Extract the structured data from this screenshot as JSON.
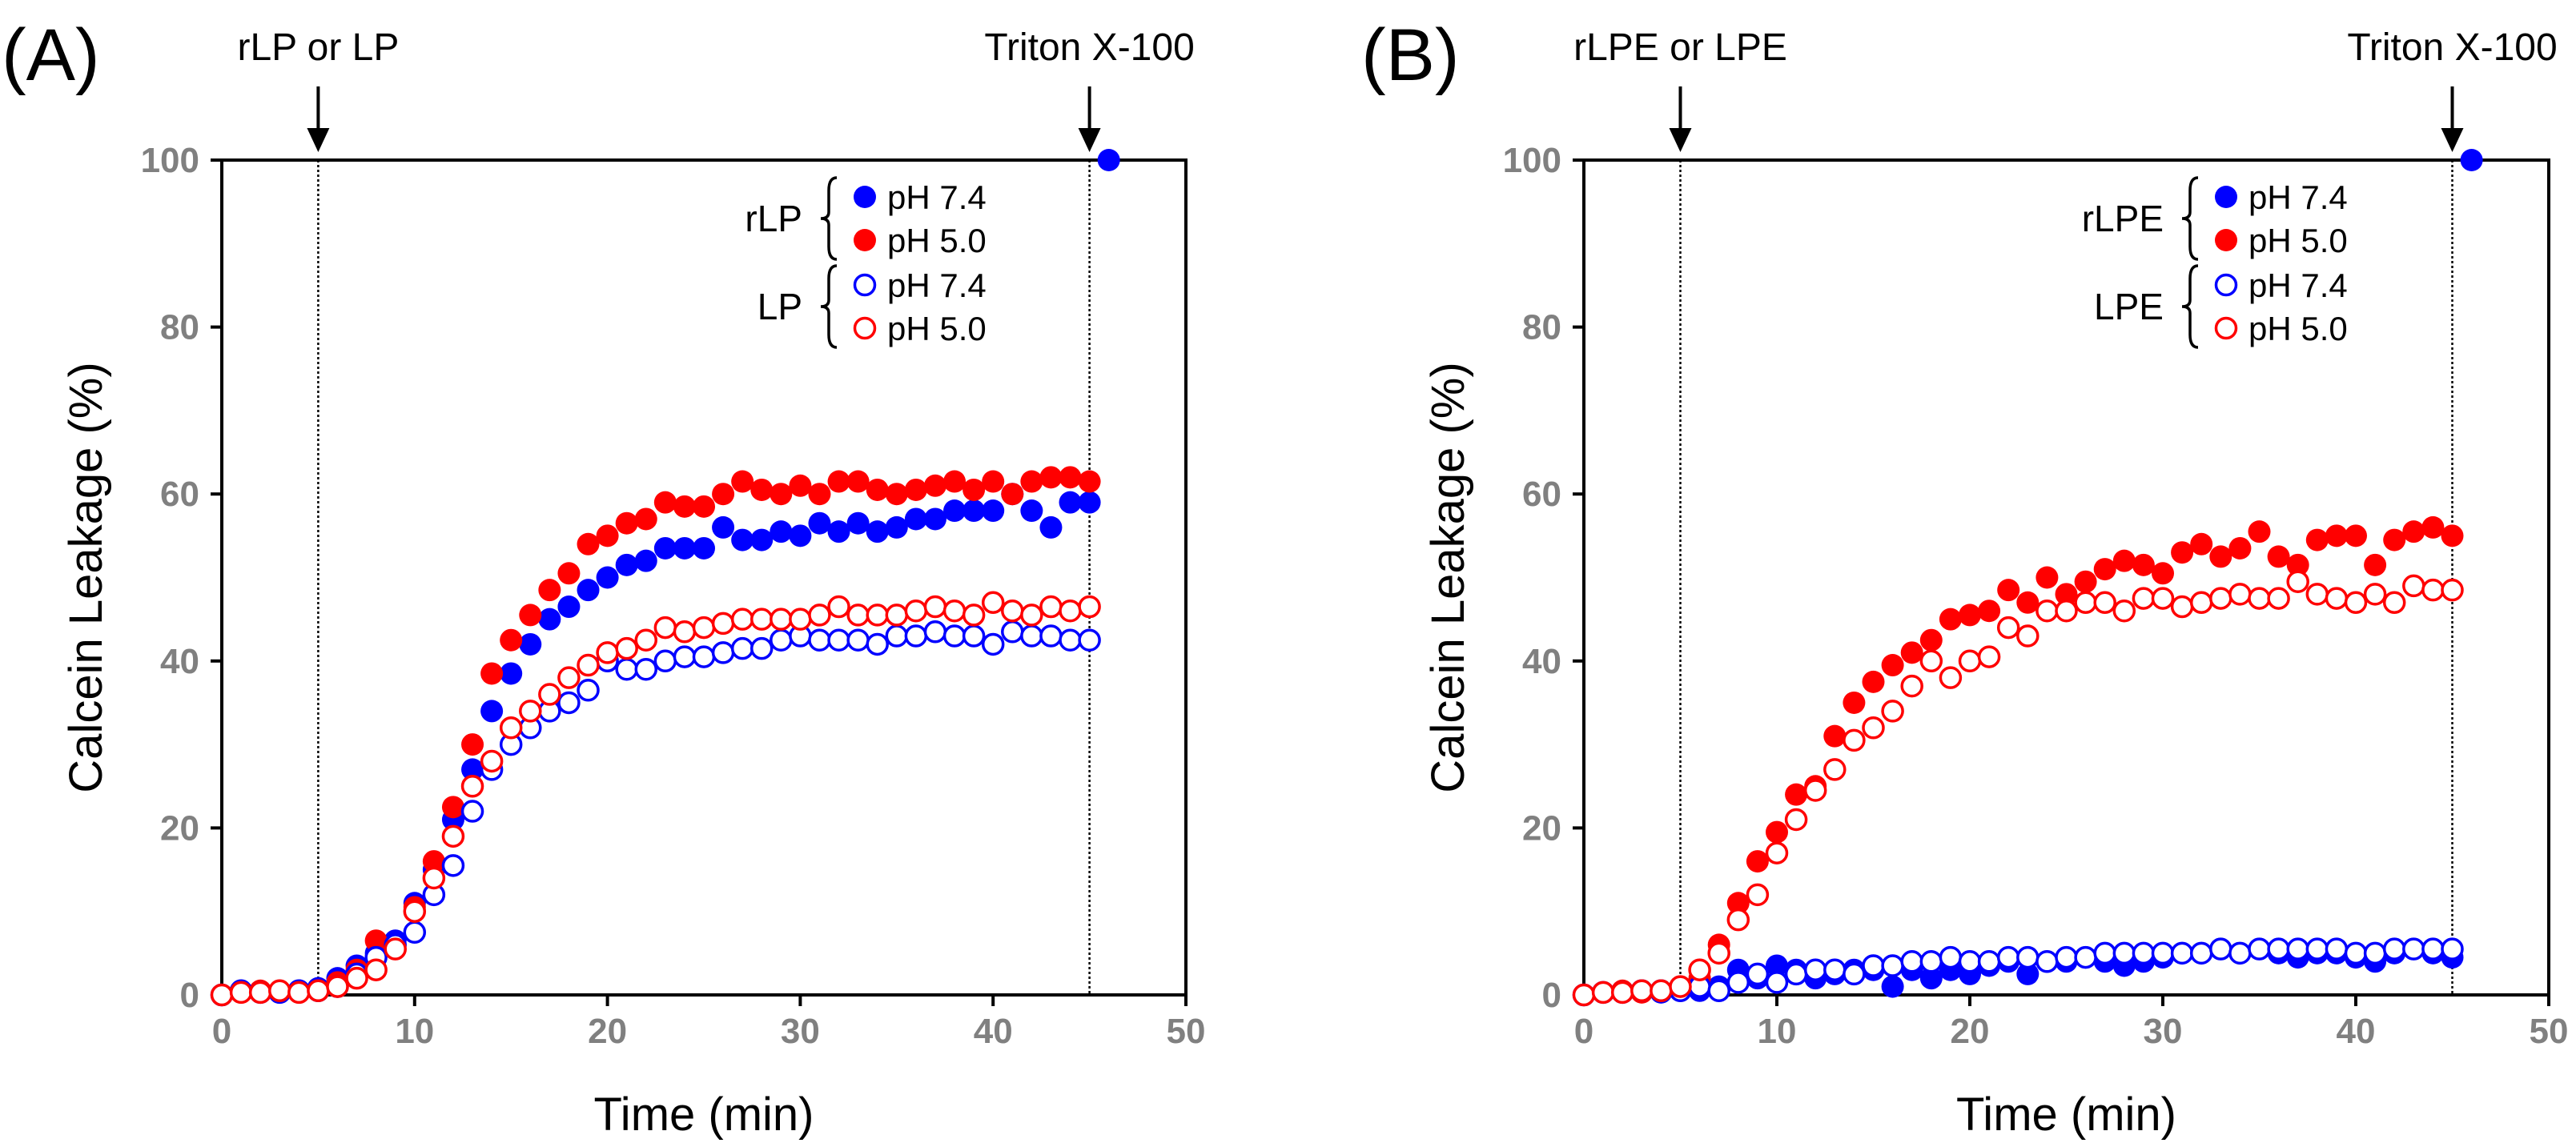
{
  "figure": {
    "colors": {
      "ph74": "#0000ff",
      "ph50": "#ff0000",
      "axis": "#000000",
      "tick": "#808080"
    }
  },
  "chart_data": [
    {
      "type": "scatter",
      "panel_label": "(A)",
      "xlabel": "Time (min)",
      "ylabel": "Calcein Leakage (%)",
      "xlim": [
        0,
        50
      ],
      "ylim": [
        0,
        100
      ],
      "xticks": [
        0,
        10,
        20,
        30,
        40,
        50
      ],
      "yticks": [
        0,
        20,
        40,
        60,
        80,
        100
      ],
      "annotations": [
        {
          "text": "rLP or LP",
          "x": 5
        },
        {
          "text": "Triton X-100",
          "x": 45
        }
      ],
      "legend": {
        "placement": "top-right",
        "groups": [
          {
            "label": "rLP",
            "entries": [
              {
                "label": "pH 7.4",
                "series": "rLP pH 7.4",
                "color": "#0000ff",
                "filled": true
              },
              {
                "label": "pH 5.0",
                "series": "rLP pH 5.0",
                "color": "#ff0000",
                "filled": true
              }
            ]
          },
          {
            "label": "LP",
            "entries": [
              {
                "label": "pH 7.4",
                "series": "LP pH 7.4",
                "color": "#0000ff",
                "filled": false
              },
              {
                "label": "pH 5.0",
                "series": "LP pH 5.0",
                "color": "#ff0000",
                "filled": false
              }
            ]
          }
        ]
      },
      "series": [
        {
          "name": "rLP pH 7.4",
          "color": "#0000ff",
          "filled": true,
          "x": [
            0,
            1,
            2,
            3,
            4,
            5,
            6,
            7,
            8,
            9,
            10,
            11,
            12,
            13,
            14,
            15,
            16,
            17,
            18,
            19,
            20,
            21,
            22,
            23,
            24,
            25,
            26,
            27,
            28,
            29,
            30,
            31,
            32,
            33,
            34,
            35,
            36,
            37,
            38,
            39,
            40,
            41,
            42,
            43,
            44,
            45
          ],
          "y": [
            0,
            0.5,
            0.3,
            0.5,
            0.3,
            0.8,
            2,
            3.5,
            5,
            6.5,
            11,
            15,
            21,
            27,
            34,
            38.5,
            42,
            45,
            46.5,
            48.5,
            50,
            51.5,
            52,
            53.5,
            53.5,
            53.5,
            56,
            54.5,
            54.5,
            55.5,
            55,
            56.5,
            55.5,
            56.5,
            55.5,
            56,
            57,
            57,
            58,
            58,
            58,
            60,
            58,
            56,
            59,
            59
          ]
        },
        {
          "name": "rLP pH 5.0",
          "color": "#ff0000",
          "filled": true,
          "x": [
            0,
            1,
            2,
            3,
            4,
            5,
            6,
            7,
            8,
            9,
            10,
            11,
            12,
            13,
            14,
            15,
            16,
            17,
            18,
            19,
            20,
            21,
            22,
            23,
            24,
            25,
            26,
            27,
            28,
            29,
            30,
            31,
            32,
            33,
            34,
            35,
            36,
            37,
            38,
            39,
            40,
            41,
            42,
            43,
            44,
            45
          ],
          "y": [
            0,
            0.3,
            0.5,
            0.3,
            0.5,
            0.5,
            1.5,
            3,
            6.5,
            5.5,
            10.5,
            16,
            22.5,
            30,
            38.5,
            42.5,
            45.5,
            48.5,
            50.5,
            54,
            55,
            56.5,
            57,
            59,
            58.5,
            58.5,
            60,
            61.5,
            60.5,
            60,
            61,
            60,
            61.5,
            61.5,
            60.5,
            60,
            60.5,
            61,
            61.5,
            60.5,
            61.5,
            60,
            61.5,
            62,
            62,
            61.5
          ]
        },
        {
          "name": "LP pH 7.4",
          "color": "#0000ff",
          "filled": false,
          "x": [
            0,
            1,
            2,
            3,
            4,
            5,
            6,
            7,
            8,
            9,
            10,
            11,
            12,
            13,
            14,
            15,
            16,
            17,
            18,
            19,
            20,
            21,
            22,
            23,
            24,
            25,
            26,
            27,
            28,
            29,
            30,
            31,
            32,
            33,
            34,
            35,
            36,
            37,
            38,
            39,
            40,
            41,
            42,
            43,
            44,
            45
          ],
          "y": [
            0,
            0.5,
            0.3,
            0.3,
            0.5,
            0.5,
            1,
            2.5,
            4.5,
            6,
            7.5,
            12,
            15.5,
            22,
            27,
            30,
            32,
            34,
            35,
            36.5,
            40,
            39,
            39,
            40,
            40.5,
            40.5,
            41,
            41.5,
            41.5,
            42.5,
            43,
            42.5,
            42.5,
            42.5,
            42,
            43,
            43,
            43.5,
            43,
            43,
            42,
            43.5,
            43,
            43,
            42.5,
            42.5
          ]
        },
        {
          "name": "LP pH 5.0",
          "color": "#ff0000",
          "filled": false,
          "x": [
            0,
            1,
            2,
            3,
            4,
            5,
            6,
            7,
            8,
            9,
            10,
            11,
            12,
            13,
            14,
            15,
            16,
            17,
            18,
            19,
            20,
            21,
            22,
            23,
            24,
            25,
            26,
            27,
            28,
            29,
            30,
            31,
            32,
            33,
            34,
            35,
            36,
            37,
            38,
            39,
            40,
            41,
            42,
            43,
            44,
            45
          ],
          "y": [
            0,
            0.3,
            0.3,
            0.5,
            0.3,
            0.5,
            1,
            2,
            3,
            5.5,
            10,
            14,
            19,
            25,
            28,
            32,
            34,
            36,
            38,
            39.5,
            41,
            41.5,
            42.5,
            44,
            43.5,
            44,
            44.5,
            45,
            45,
            45,
            45,
            45.5,
            46.5,
            45.5,
            45.5,
            45.5,
            46,
            46.5,
            46,
            45.5,
            47,
            46,
            45.5,
            46.5,
            46,
            46.5
          ]
        },
        {
          "name": "Triton X-100",
          "color": "#0000ff",
          "filled": true,
          "marker_only": true,
          "x": [
            46
          ],
          "y": [
            100
          ]
        }
      ]
    },
    {
      "type": "scatter",
      "panel_label": "(B)",
      "xlabel": "Time (min)",
      "ylabel": "Calcein Leakage (%)",
      "xlim": [
        0,
        50
      ],
      "ylim": [
        0,
        100
      ],
      "xticks": [
        0,
        10,
        20,
        30,
        40,
        50
      ],
      "yticks": [
        0,
        20,
        40,
        60,
        80,
        100
      ],
      "annotations": [
        {
          "text": "rLPE or LPE",
          "x": 5
        },
        {
          "text": "Triton X-100",
          "x": 45
        }
      ],
      "legend": {
        "placement": "top-right",
        "groups": [
          {
            "label": "rLPE",
            "entries": [
              {
                "label": "pH 7.4",
                "series": "rLPE pH 7.4",
                "color": "#0000ff",
                "filled": true
              },
              {
                "label": "pH 5.0",
                "series": "rLPE pH 5.0",
                "color": "#ff0000",
                "filled": true
              }
            ]
          },
          {
            "label": "LPE",
            "entries": [
              {
                "label": "pH 7.4",
                "series": "LPE pH 7.4",
                "color": "#0000ff",
                "filled": false
              },
              {
                "label": "pH 5.0",
                "series": "LPE pH 5.0",
                "color": "#ff0000",
                "filled": false
              }
            ]
          }
        ]
      },
      "series": [
        {
          "name": "rLPE pH 7.4",
          "color": "#0000ff",
          "filled": true,
          "x": [
            0,
            1,
            2,
            3,
            4,
            5,
            6,
            7,
            8,
            9,
            10,
            11,
            12,
            13,
            14,
            15,
            16,
            17,
            18,
            19,
            20,
            21,
            22,
            23,
            24,
            25,
            26,
            27,
            28,
            29,
            30,
            31,
            32,
            33,
            34,
            35,
            36,
            37,
            38,
            39,
            40,
            41,
            42,
            43,
            44,
            45
          ],
          "y": [
            0,
            0.3,
            0.3,
            0.5,
            0.3,
            0.5,
            0.5,
            1,
            3,
            2,
            3.5,
            3,
            2,
            2.5,
            3,
            3,
            1,
            3,
            2,
            3,
            2.5,
            3.5,
            4,
            2.5,
            4,
            4,
            4.5,
            4,
            3.5,
            4,
            4.5,
            5,
            5,
            5.5,
            5,
            5.5,
            5,
            4.5,
            5,
            5,
            4.5,
            4,
            5,
            5.5,
            5,
            4.5
          ]
        },
        {
          "name": "rLPE pH 5.0",
          "color": "#ff0000",
          "filled": true,
          "x": [
            0,
            1,
            2,
            3,
            4,
            5,
            6,
            7,
            8,
            9,
            10,
            11,
            12,
            13,
            14,
            15,
            16,
            17,
            18,
            19,
            20,
            21,
            22,
            23,
            24,
            25,
            26,
            27,
            28,
            29,
            30,
            31,
            32,
            33,
            34,
            35,
            36,
            37,
            38,
            39,
            40,
            41,
            42,
            43,
            44,
            45
          ],
          "y": [
            0,
            0.3,
            0.5,
            0.3,
            0.5,
            0.5,
            2,
            6,
            11,
            16,
            19.5,
            24,
            25,
            31,
            35,
            37.5,
            39.5,
            41,
            42.5,
            45,
            45.5,
            46,
            48.5,
            47,
            50,
            48,
            49.5,
            51,
            52,
            51.5,
            50.5,
            53,
            54,
            52.5,
            53.5,
            55.5,
            52.5,
            51.5,
            54.5,
            55,
            55,
            51.5,
            54.5,
            55.5,
            56,
            55
          ]
        },
        {
          "name": "LPE pH 7.4",
          "color": "#0000ff",
          "filled": false,
          "x": [
            0,
            1,
            2,
            3,
            4,
            5,
            6,
            7,
            8,
            9,
            10,
            11,
            12,
            13,
            14,
            15,
            16,
            17,
            18,
            19,
            20,
            21,
            22,
            23,
            24,
            25,
            26,
            27,
            28,
            29,
            30,
            31,
            32,
            33,
            34,
            35,
            36,
            37,
            38,
            39,
            40,
            41,
            42,
            43,
            44,
            45
          ],
          "y": [
            0,
            0.3,
            0.3,
            0.5,
            0.5,
            0.5,
            1,
            0.5,
            1.5,
            2.5,
            1.5,
            2.5,
            3,
            3,
            2.5,
            3.5,
            3.5,
            4,
            4,
            4.5,
            4,
            4,
            4.5,
            4.5,
            4,
            4.5,
            4.5,
            5,
            5,
            5,
            5,
            5,
            5,
            5.5,
            5,
            5.5,
            5.5,
            5.5,
            5.5,
            5.5,
            5,
            5,
            5.5,
            5.5,
            5.5,
            5.5
          ]
        },
        {
          "name": "LPE pH 5.0",
          "color": "#ff0000",
          "filled": false,
          "x": [
            0,
            1,
            2,
            3,
            4,
            5,
            6,
            7,
            8,
            9,
            10,
            11,
            12,
            13,
            14,
            15,
            16,
            17,
            18,
            19,
            20,
            21,
            22,
            23,
            24,
            25,
            26,
            27,
            28,
            29,
            30,
            31,
            32,
            33,
            34,
            35,
            36,
            37,
            38,
            39,
            40,
            41,
            42,
            43,
            44,
            45
          ],
          "y": [
            0,
            0.3,
            0.3,
            0.5,
            0.5,
            1,
            3,
            5,
            9,
            12,
            17,
            21,
            24.5,
            27,
            30.5,
            32,
            34,
            37,
            40,
            38,
            40,
            40.5,
            44,
            43,
            46,
            46,
            47,
            47,
            46,
            47.5,
            47.5,
            46.5,
            47,
            47.5,
            48,
            47.5,
            47.5,
            49.5,
            48,
            47.5,
            47,
            48,
            47,
            49,
            48.5,
            48.5
          ]
        },
        {
          "name": "Triton X-100",
          "color": "#0000ff",
          "filled": true,
          "marker_only": true,
          "x": [
            46
          ],
          "y": [
            100
          ]
        }
      ]
    }
  ]
}
